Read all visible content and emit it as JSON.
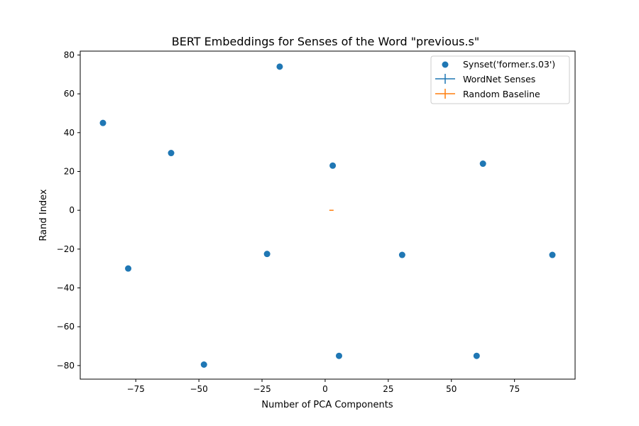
{
  "chart_data": {
    "type": "scatter",
    "title": "BERT Embeddings for Senses of the Word \"previous.s\"",
    "xlabel": "Number of PCA Components",
    "ylabel": "Rand Index",
    "xlim": [
      -97,
      99
    ],
    "ylim": [
      -87,
      82
    ],
    "xticks": [
      -75,
      -50,
      -25,
      0,
      25,
      50,
      75
    ],
    "yticks": [
      -80,
      -60,
      -40,
      -20,
      0,
      20,
      40,
      60,
      80
    ],
    "grid": false,
    "legend_position": "top-right",
    "series": [
      {
        "name": "Synset('former.s.03')",
        "kind": "scatter",
        "color": "#1f77b4",
        "points": [
          {
            "x": -88,
            "y": 45
          },
          {
            "x": -78,
            "y": -30
          },
          {
            "x": -61,
            "y": 29.5
          },
          {
            "x": -48,
            "y": -79.5
          },
          {
            "x": -23,
            "y": -22.5
          },
          {
            "x": -18,
            "y": 74
          },
          {
            "x": 3,
            "y": 23
          },
          {
            "x": 5.5,
            "y": -75
          },
          {
            "x": 30.5,
            "y": -23
          },
          {
            "x": 60,
            "y": -75
          },
          {
            "x": 62.5,
            "y": 24
          },
          {
            "x": 90,
            "y": -23
          }
        ]
      },
      {
        "name": "WordNet Senses",
        "kind": "errorbar",
        "color": "#1f77b4",
        "points": []
      },
      {
        "name": "Random Baseline",
        "kind": "errorbar",
        "color": "#ff7f0e",
        "points": [
          {
            "x": 2.5,
            "y": 0
          }
        ]
      }
    ]
  }
}
